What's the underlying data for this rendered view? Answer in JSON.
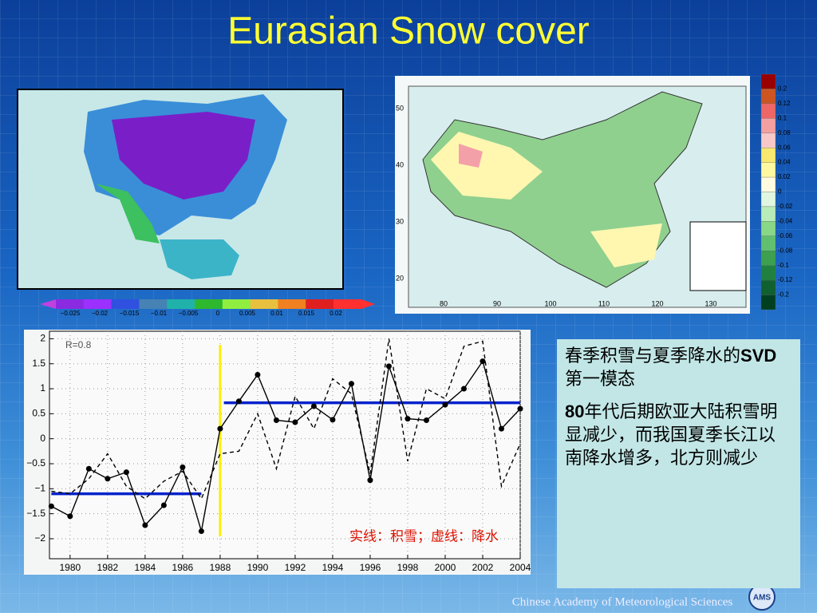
{
  "title": "Eurasian Snow cover",
  "eurasia_colorbar": {
    "labels": [
      "−0.025",
      "−0.02",
      "−0.015",
      "−0.01",
      "−0.005",
      "0",
      "0.005",
      "0.01",
      "0.015",
      "0.02"
    ]
  },
  "china_map": {
    "yticks": [
      "50",
      "40",
      "30",
      "20"
    ],
    "xticks": [
      "80",
      "90",
      "100",
      "110",
      "120",
      "130"
    ],
    "colorbar": [
      "0.2",
      "0.12",
      "0.1",
      "0.08",
      "0.06",
      "0.04",
      "0.02",
      "0",
      "-0.02",
      "-0.04",
      "-0.06",
      "-0.08",
      "-0.1",
      "-0.12",
      "-0.2"
    ]
  },
  "chart_data": {
    "type": "line",
    "x": [
      1979,
      1980,
      1981,
      1982,
      1983,
      1984,
      1985,
      1986,
      1987,
      1988,
      1989,
      1990,
      1991,
      1992,
      1993,
      1994,
      1995,
      1996,
      1997,
      1998,
      1999,
      2000,
      2001,
      2002,
      2003,
      2004
    ],
    "series": [
      {
        "name": "实线：积雪",
        "color": "#000000",
        "style": "solid",
        "markers": true,
        "values": [
          -1.35,
          -1.55,
          -0.6,
          -0.8,
          -0.67,
          -1.73,
          -1.33,
          -0.57,
          -1.85,
          0.2,
          0.75,
          1.28,
          0.37,
          0.33,
          0.65,
          0.38,
          1.1,
          -0.83,
          1.45,
          0.4,
          0.37,
          0.68,
          1.0,
          1.55,
          0.2,
          0.6
        ]
      },
      {
        "name": "虚线：降水",
        "color": "#000000",
        "style": "dashed",
        "markers": false,
        "values": [
          -1.05,
          -1.1,
          -0.8,
          -0.3,
          -0.95,
          -1.2,
          -0.85,
          -0.65,
          -1.2,
          -0.3,
          -0.25,
          0.5,
          -0.6,
          0.85,
          0.2,
          1.2,
          0.9,
          -0.7,
          2.0,
          -0.45,
          1.0,
          0.8,
          1.85,
          1.95,
          -0.95,
          -0.1
        ]
      }
    ],
    "legend_text": "实线：积雪；虚线：降水",
    "annotation": "R=0.8",
    "mean_lines": [
      {
        "x": [
          1979,
          1987
        ],
        "value": -1.1,
        "color": "#0022cc"
      },
      {
        "x": [
          1988.2,
          2004
        ],
        "value": 0.72,
        "color": "#0022cc"
      }
    ],
    "breakpoint": {
      "x": 1988,
      "color": "#ffee00"
    },
    "xlim": [
      1978.9,
      2004
    ],
    "ylim": [
      -2.4,
      2.15
    ],
    "xticks": [
      1980,
      1982,
      1984,
      1986,
      1988,
      1990,
      1992,
      1994,
      1996,
      1998,
      2000,
      2002,
      2004
    ],
    "yticks": [
      2,
      1.5,
      1,
      0.5,
      0,
      {
        "value": -0.5,
        "label": "−0.5"
      },
      {
        "value": -1,
        "label": "−1"
      },
      {
        "value": -1.5,
        "label": "−1.5"
      },
      {
        "value": -2,
        "label": "−2"
      }
    ],
    "grid": true
  },
  "text_box": {
    "paragraphs": [
      [
        "春季积雪与夏季降水的",
        "SVD",
        "第一模态"
      ],
      [
        "80",
        "年代后期欧亚大陆积雪明显减少，而我国夏季长江以南降水增多，北方则减少"
      ]
    ]
  },
  "footer": "Chinese Academy of Meteorological Sciences",
  "logo": "AMS"
}
